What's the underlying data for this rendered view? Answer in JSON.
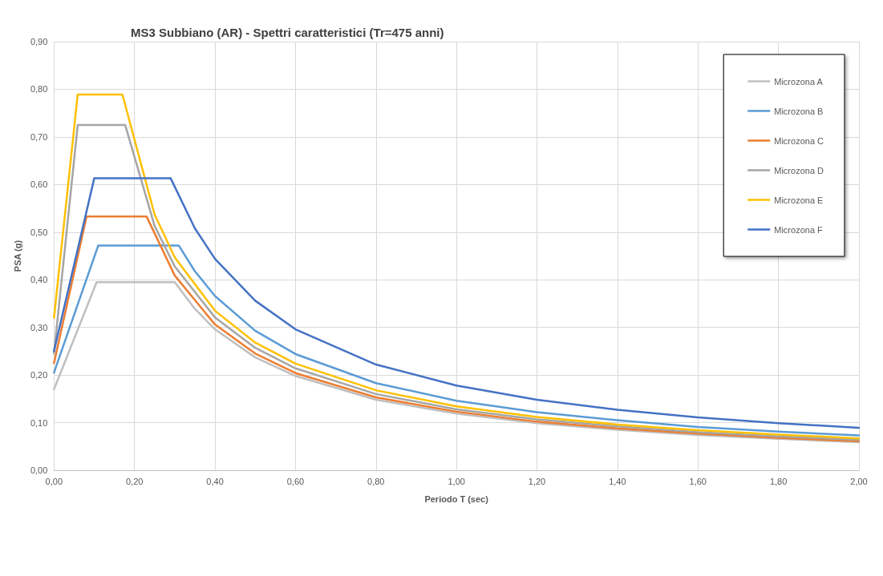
{
  "chart_data": {
    "type": "line",
    "title": "MS3 Subbiano (AR) - Spettri caratteristici (Tr=475 anni)",
    "xlabel": "Periodo T (sec)",
    "ylabel": "PSA (g)",
    "xlim": [
      0,
      2
    ],
    "xticks": [
      {
        "value": 0,
        "label": "0,00"
      },
      {
        "value": 0.2,
        "label": "0,20"
      },
      {
        "value": 0.4,
        "label": "0,40"
      },
      {
        "value": 0.6,
        "label": "0,60"
      },
      {
        "value": 0.8,
        "label": "0,80"
      },
      {
        "value": 1,
        "label": "1,00"
      },
      {
        "value": 1.2,
        "label": "1,20"
      },
      {
        "value": 1.4,
        "label": "1,40"
      },
      {
        "value": 1.6,
        "label": "1,60"
      },
      {
        "value": 1.8,
        "label": "1,80"
      },
      {
        "value": 2,
        "label": "2,00"
      }
    ],
    "ylim": [
      0,
      0.9
    ],
    "yticks": [
      {
        "value": 0,
        "label": "0,00"
      },
      {
        "value": 0.1,
        "label": "0,10"
      },
      {
        "value": 0.2,
        "label": "0,20"
      },
      {
        "value": 0.3,
        "label": "0,30"
      },
      {
        "value": 0.4,
        "label": "0,40"
      },
      {
        "value": 0.5,
        "label": "0,50"
      },
      {
        "value": 0.6,
        "label": "0,60"
      },
      {
        "value": 0.7,
        "label": "0,70"
      },
      {
        "value": 0.8,
        "label": "0,80"
      },
      {
        "value": 0.9,
        "label": "0,90"
      }
    ],
    "grid": true,
    "legend": "top right",
    "marker": "none",
    "line_style": "solid",
    "series": [
      {
        "name": "Microzona A",
        "color": "#bfbfbf",
        "x": [
          0,
          0.106,
          0.3,
          0.35,
          0.4,
          0.5,
          0.6,
          0.8,
          1,
          1.2,
          1.4,
          1.6,
          1.8,
          2
        ],
        "values": [
          0.17,
          0.395,
          0.395,
          0.339,
          0.296,
          0.237,
          0.198,
          0.148,
          0.119,
          0.099,
          0.085,
          0.074,
          0.066,
          0.059
        ]
      },
      {
        "name": "Microzona B",
        "color": "#5b9bd5",
        "x": [
          0,
          0.11,
          0.31,
          0.35,
          0.4,
          0.5,
          0.6,
          0.8,
          1,
          1.2,
          1.4,
          1.6,
          1.8,
          2
        ],
        "values": [
          0.205,
          0.472,
          0.472,
          0.418,
          0.366,
          0.293,
          0.244,
          0.183,
          0.146,
          0.122,
          0.105,
          0.091,
          0.081,
          0.073
        ]
      },
      {
        "name": "Microzona C",
        "color": "#ed7d31",
        "x": [
          0,
          0.081,
          0.23,
          0.3,
          0.4,
          0.5,
          0.6,
          0.8,
          1,
          1.2,
          1.4,
          1.6,
          1.8,
          2
        ],
        "values": [
          0.225,
          0.533,
          0.533,
          0.409,
          0.306,
          0.245,
          0.204,
          0.153,
          0.123,
          0.102,
          0.088,
          0.077,
          0.068,
          0.061
        ]
      },
      {
        "name": "Microzona D",
        "color": "#a5a5a5",
        "x": [
          0,
          0.059,
          0.177,
          0.25,
          0.3,
          0.4,
          0.5,
          0.6,
          0.8,
          1,
          1.2,
          1.4,
          1.6,
          1.8,
          2
        ],
        "values": [
          0.245,
          0.725,
          0.725,
          0.513,
          0.428,
          0.321,
          0.257,
          0.214,
          0.16,
          0.128,
          0.107,
          0.092,
          0.08,
          0.071,
          0.064
        ]
      },
      {
        "name": "Microzona E",
        "color": "#ffc000",
        "x": [
          0,
          0.059,
          0.17,
          0.25,
          0.3,
          0.4,
          0.5,
          0.6,
          0.8,
          1,
          1.2,
          1.4,
          1.6,
          1.8,
          2
        ],
        "values": [
          0.32,
          0.789,
          0.789,
          0.537,
          0.447,
          0.335,
          0.268,
          0.224,
          0.168,
          0.134,
          0.112,
          0.096,
          0.084,
          0.075,
          0.067
        ]
      },
      {
        "name": "Microzona F",
        "color": "#4472c4",
        "x": [
          0,
          0.1,
          0.29,
          0.35,
          0.4,
          0.5,
          0.6,
          0.8,
          1,
          1.2,
          1.4,
          1.6,
          1.8,
          2
        ],
        "values": [
          0.25,
          0.613,
          0.613,
          0.508,
          0.444,
          0.356,
          0.296,
          0.222,
          0.178,
          0.148,
          0.127,
          0.111,
          0.099,
          0.089
        ]
      }
    ]
  }
}
